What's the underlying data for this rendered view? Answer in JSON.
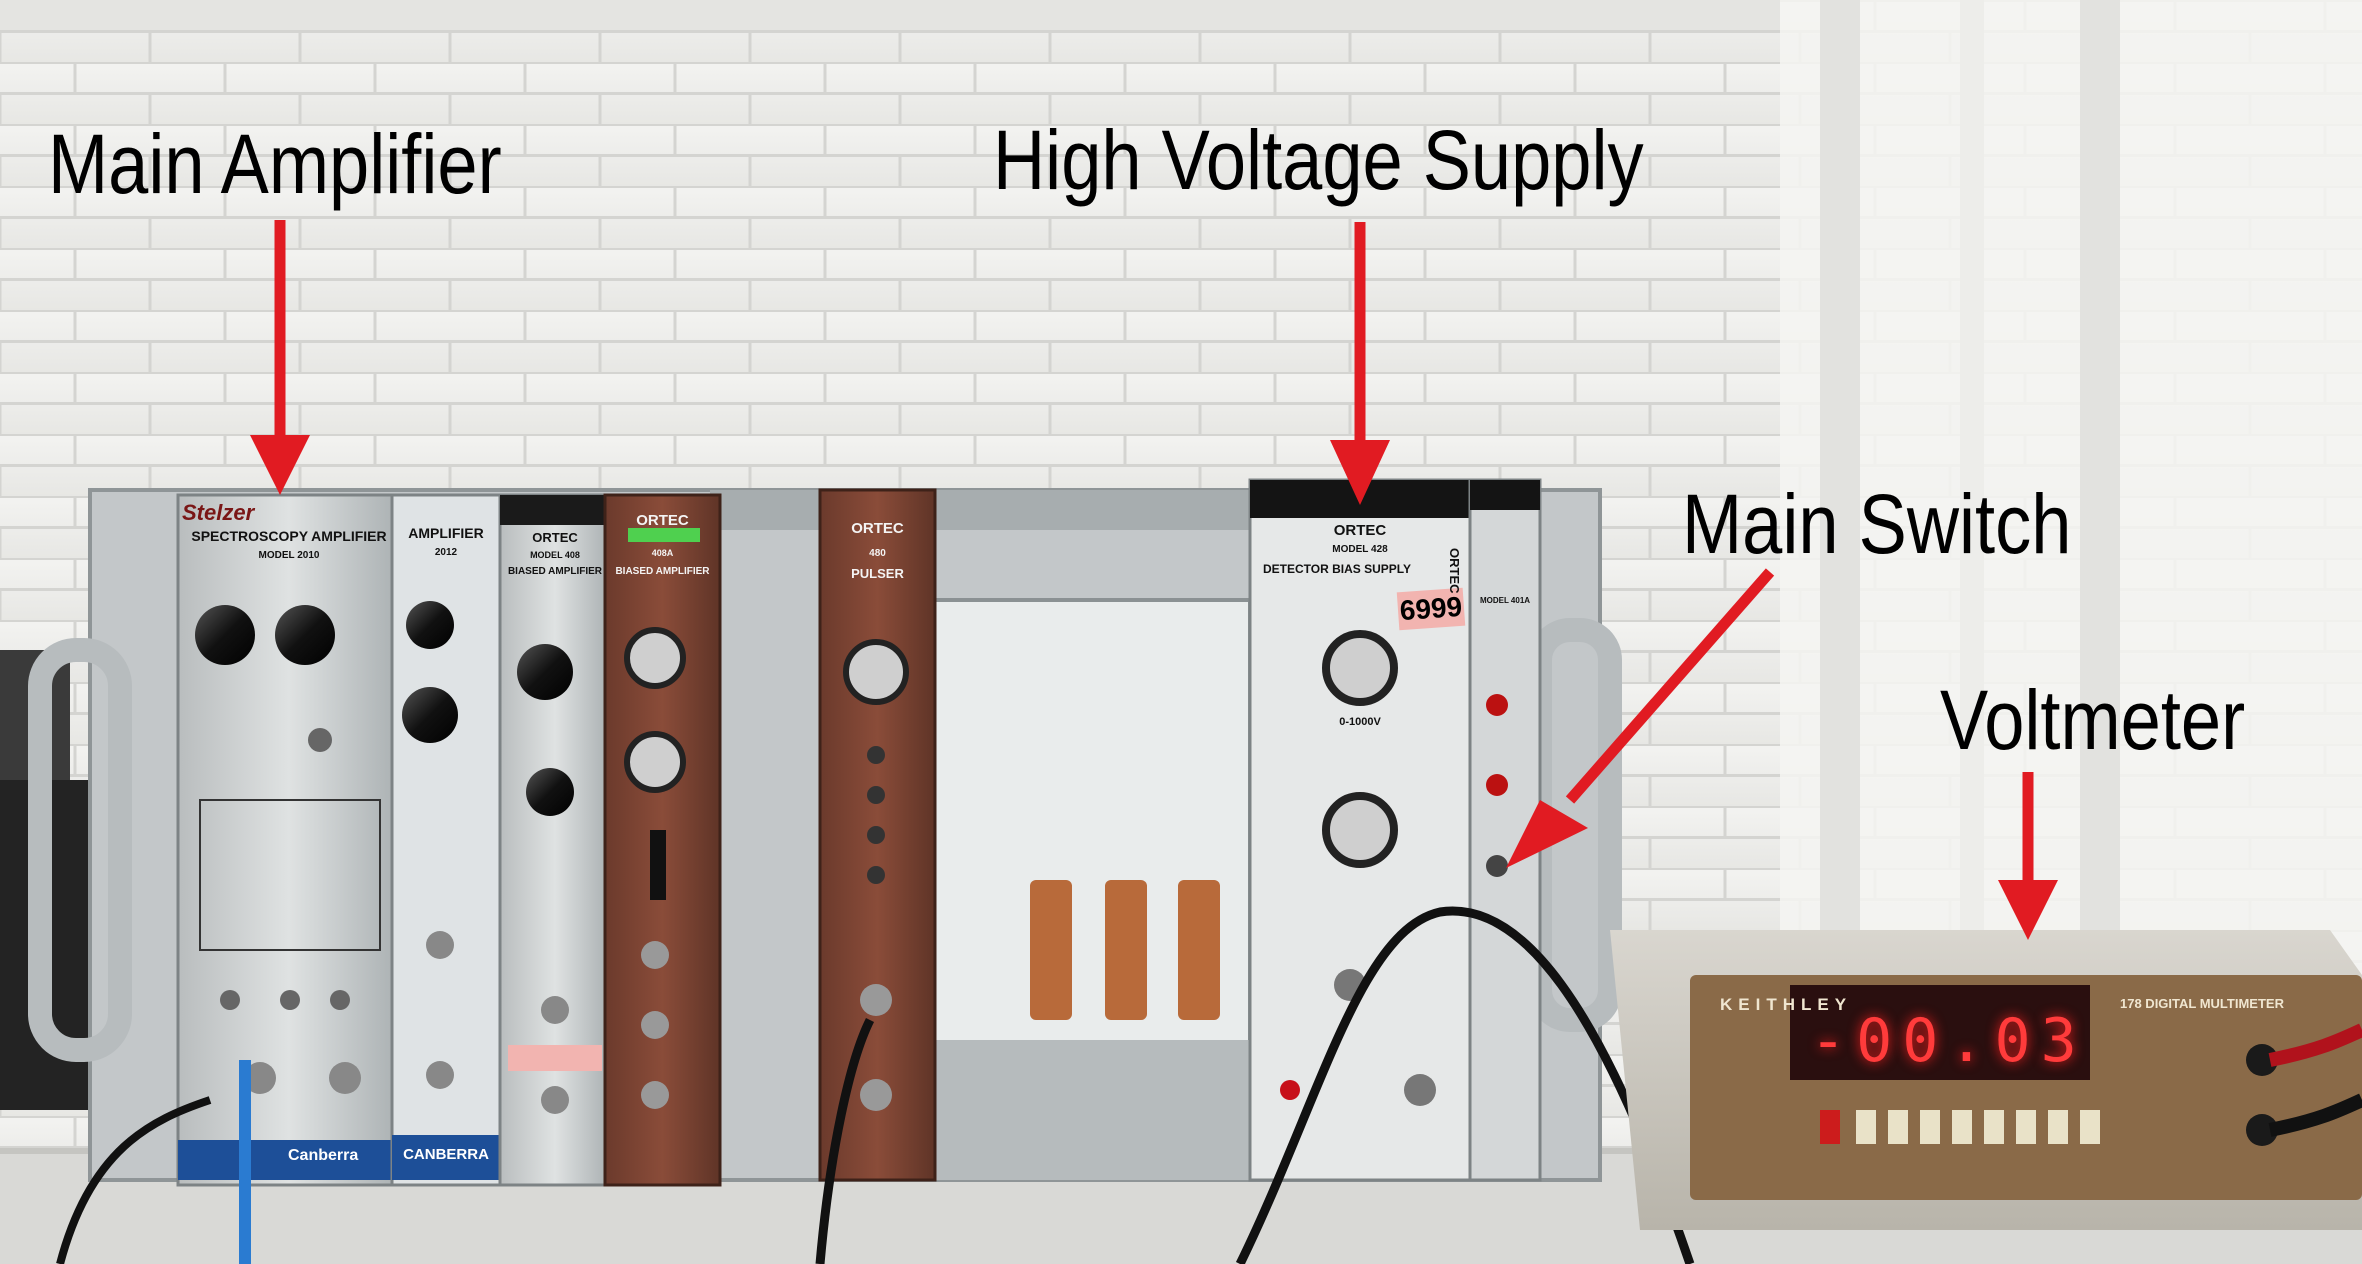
{
  "annotations": [
    {
      "label": "Main Amplifier"
    },
    {
      "label": "High Voltage Supply"
    },
    {
      "label": "Main Switch"
    },
    {
      "label": "Voltmeter"
    }
  ],
  "modules": {
    "spectroscopy_amp": {
      "brand": "Canberra",
      "title": "SPECTROSCOPY AMPLIFIER",
      "model": "MODEL 2010",
      "sticker": "Stelzer"
    },
    "amplifier_2012": {
      "title": "AMPLIFIER",
      "model": "2012",
      "brand": "CANBERRA"
    },
    "biased_amp_408": {
      "brand": "ORTEC",
      "model": "MODEL 408",
      "title": "BIASED AMPLIFIER"
    },
    "biased_amp_408a": {
      "brand": "ORTEC",
      "model": "408A",
      "title": "BIASED AMPLIFIER"
    },
    "pulser_480": {
      "brand": "ORTEC",
      "model": "480",
      "title": "PULSER"
    },
    "bias_supply_428": {
      "brand": "ORTEC",
      "model": "MODEL 428",
      "title": "DETECTOR BIAS SUPPLY",
      "range": "0-1000V",
      "tag": "6999"
    },
    "power_401a": {
      "brand": "ORTEC",
      "model": "MODEL 401A"
    }
  },
  "voltmeter": {
    "brand": "KEITHLEY",
    "model": "178 DIGITAL MULTIMETER",
    "reading": "-00.03"
  },
  "colors": {
    "arrow": "#e11b22",
    "label_text": "#000000"
  }
}
